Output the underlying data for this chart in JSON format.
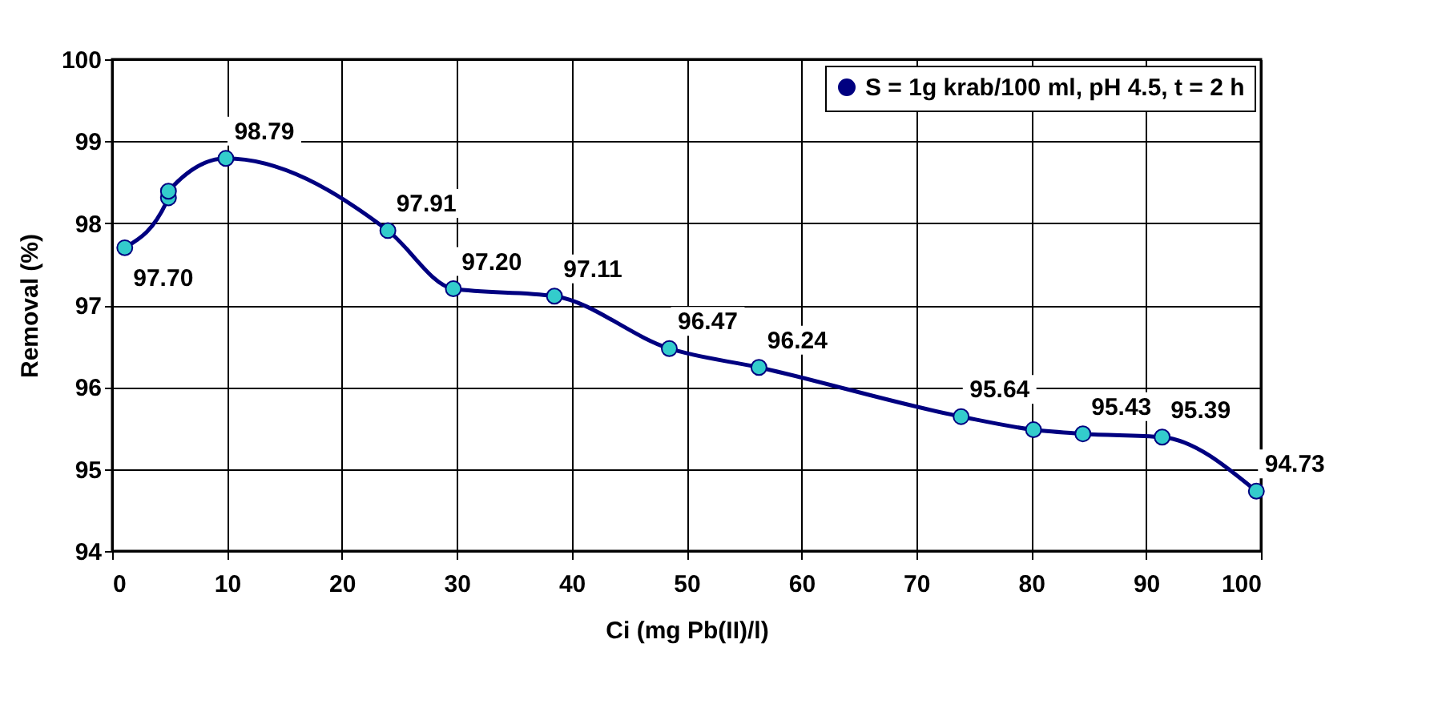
{
  "chart_data": {
    "type": "line",
    "xlabel": "Ci (mg Pb(II)/l)",
    "ylabel": "Removal (%)",
    "x": [
      1.1,
      4.9,
      4.9,
      9.9,
      24.0,
      29.7,
      38.5,
      48.5,
      56.3,
      73.9,
      80.2,
      84.5,
      91.4,
      99.6
    ],
    "series": [
      {
        "name": "S = 1g krab/100 ml, pH 4.5, t = 2 h",
        "color": "#000080",
        "values": [
          97.7,
          98.31,
          98.39,
          98.79,
          97.91,
          97.2,
          97.11,
          96.47,
          96.24,
          95.64,
          95.48,
          95.43,
          95.39,
          94.73
        ],
        "value_labels": [
          "97.70",
          null,
          null,
          "98.79",
          "97.91",
          "97.20",
          "97.11",
          "96.47",
          "96.24",
          "95.64",
          null,
          "95.43",
          "95.39",
          "94.73"
        ]
      }
    ],
    "xlim": [
      0,
      100
    ],
    "xticks": [
      0,
      10,
      20,
      30,
      40,
      50,
      60,
      70,
      80,
      90,
      100
    ],
    "ylim": [
      94,
      100
    ],
    "yticks": [
      94,
      95,
      96,
      97,
      98,
      99,
      100
    ],
    "grid": true,
    "legend": "top right",
    "marker": "circle",
    "line_style": "solid"
  }
}
